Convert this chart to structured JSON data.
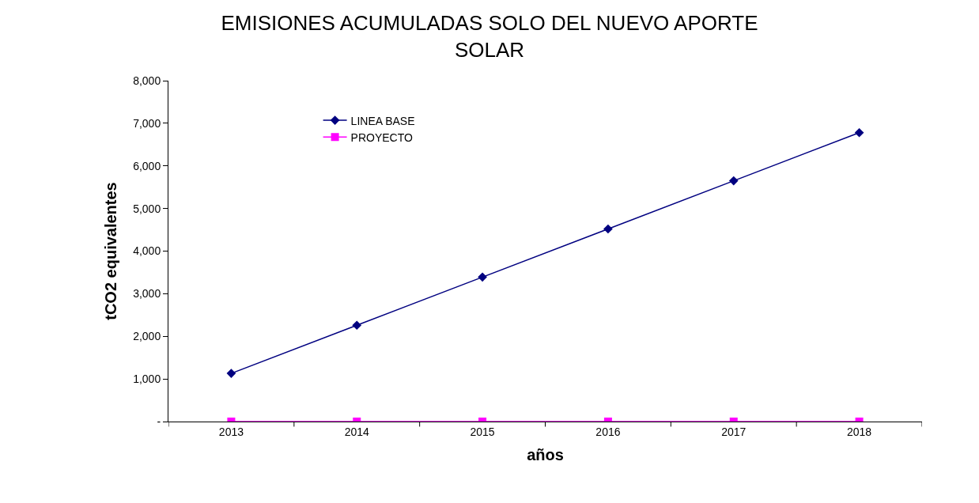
{
  "chart_data": {
    "type": "line",
    "title": "EMISIONES ACUMULADAS SOLO DEL NUEVO APORTE SOLAR",
    "xlabel": "años",
    "ylabel": "tCO2 equivalentes",
    "categories": [
      "2013",
      "2014",
      "2015",
      "2016",
      "2017",
      "2018"
    ],
    "series": [
      {
        "name": "LINEA BASE",
        "color": "#000080",
        "marker": "diamond",
        "values": [
          1130,
          2260,
          3390,
          4520,
          5650,
          6780
        ]
      },
      {
        "name": "PROYECTO",
        "color": "#ff00ff",
        "marker": "square",
        "values": [
          0,
          0,
          0,
          0,
          0,
          0
        ]
      }
    ],
    "ylim": [
      0,
      8000
    ],
    "yticks": [
      {
        "value": 0,
        "label": "-"
      },
      {
        "value": 1000,
        "label": "1,000"
      },
      {
        "value": 2000,
        "label": "2,000"
      },
      {
        "value": 3000,
        "label": "3,000"
      },
      {
        "value": 4000,
        "label": "4,000"
      },
      {
        "value": 5000,
        "label": "5,000"
      },
      {
        "value": 6000,
        "label": "6,000"
      },
      {
        "value": 7000,
        "label": "7,000"
      },
      {
        "value": 8000,
        "label": "8,000"
      }
    ],
    "legend": "top left",
    "line_style": "solid"
  }
}
